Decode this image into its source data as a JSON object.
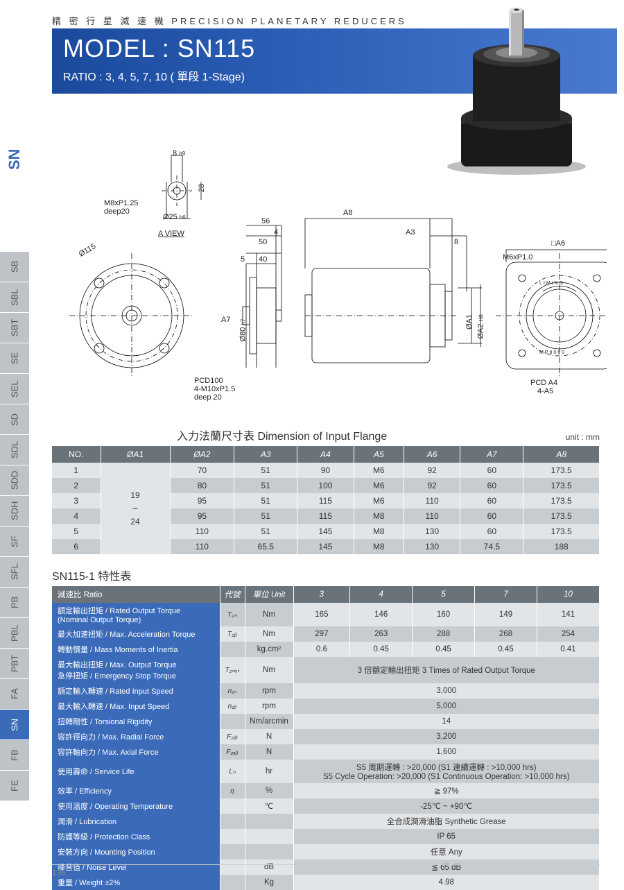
{
  "sideTabs": [
    "SB",
    "SBL",
    "SBT",
    "SE",
    "SEL",
    "SD",
    "SDL",
    "SDD",
    "SDH",
    "SF",
    "SFL",
    "PB",
    "PBL",
    "PBT",
    "FA",
    "SN",
    "FB",
    "FE"
  ],
  "sideActive": "SN",
  "sideMain": "SN",
  "header": {
    "topLabel": "精 密 行 星 減 速 機   PRECISION PLANETARY REDUCERS",
    "model": "MODEL : SN115",
    "ratio": "RATIO : 3,  4,  5,  7,  10 ( 單段 1-Stage)"
  },
  "drawing": {
    "shaftTop": "8",
    "shaftTopTol": "h9",
    "shaftHeight": "28",
    "m8": "M8xP1.25",
    "deep20a": "deep20",
    "d25": "Ø25",
    "d25Tol": "h6",
    "aview": "A  VIEW",
    "d115": "Ø115",
    "pcd100": "PCD100",
    "m10": "4-M10xP1.5",
    "deep20b": "deep 20",
    "a8": "A8",
    "n56": "56",
    "n4": "4",
    "n50": "50",
    "n5": "5",
    "n40": "40",
    "a7v": "A7",
    "d80": "Ø80",
    "d80Tol": "h7",
    "a3": "A3",
    "n8": "8",
    "da1": "ØA1",
    "da2": "ØA2",
    "da2Tol": "H8",
    "sqA6": "□A6",
    "m6": "M6xP1.0",
    "pcdA4": "PCD A4",
    "fourA5": "4-A5",
    "liming": "LIMING",
    "mp": "MP9060"
  },
  "flangeTable": {
    "title": "入力法蘭尺寸表  Dimension of Input Flange",
    "unit": "unit : mm",
    "headers": [
      "NO.",
      "ØA1",
      "ØA2",
      "A3",
      "A4",
      "A5",
      "A6",
      "A7",
      "A8"
    ],
    "oa1Top": "19",
    "oa1Mid": "~",
    "oa1Bot": "24",
    "rows": [
      [
        "1",
        "",
        "70",
        "51",
        "90",
        "M6",
        "92",
        "60",
        "173.5"
      ],
      [
        "2",
        "",
        "80",
        "51",
        "100",
        "M6",
        "92",
        "60",
        "173.5"
      ],
      [
        "3",
        "",
        "95",
        "51",
        "115",
        "M6",
        "110",
        "60",
        "173.5"
      ],
      [
        "4",
        "",
        "95",
        "51",
        "115",
        "M8",
        "110",
        "60",
        "173.5"
      ],
      [
        "5",
        "",
        "110",
        "51",
        "145",
        "M8",
        "130",
        "60",
        "173.5"
      ],
      [
        "6",
        "",
        "110",
        "65.5",
        "145",
        "M8",
        "130",
        "74.5",
        "188"
      ]
    ]
  },
  "specTable": {
    "title": "SN115-1 特性表",
    "headerRow": {
      "ratio": "減速比 Ratio",
      "code": "代號",
      "unit": "單位 Unit",
      "vals": [
        "3",
        "4",
        "5",
        "7",
        "10"
      ]
    },
    "rows": [
      {
        "label": "額定輸出扭矩 / Rated Output Torque\n(Nominal Output Torque)",
        "code": "T₂ₙ",
        "unit": "Nm",
        "vals": [
          "165",
          "146",
          "160",
          "149",
          "141"
        ]
      },
      {
        "label": "最大加速扭矩 / Max. Acceleration Torque",
        "code": "T₂ᵦ",
        "unit": "Nm",
        "vals": [
          "297",
          "263",
          "288",
          "268",
          "254"
        ]
      },
      {
        "label": "轉動慣量 / Mass Moments of Inertia",
        "code": "",
        "unit": "kg.cm²",
        "vals": [
          "0.6",
          "0.45",
          "0.45",
          "0.45",
          "0.41"
        ]
      },
      {
        "label": "最大輸出扭矩 / Max. Output Torque\n急停扭矩 / Emergency Stop Torque",
        "code": "T₂ₙₒₜ",
        "unit": "Nm",
        "merged": "3 倍額定輸出扭矩 3 Times of Rated Output Torque"
      },
      {
        "label": "額定輸入轉速 / Rated Input Speed",
        "code": "n₁ₙ",
        "unit": "rpm",
        "merged": "3,000"
      },
      {
        "label": "最大輸入轉速 / Max. Input Speed",
        "code": "n₁ᵦ",
        "unit": "rpm",
        "merged": "5,000"
      },
      {
        "label": "扭轉剛性 / Torsional Rigidity",
        "code": "",
        "unit": "Nm/arcmin",
        "merged": "14"
      },
      {
        "label": "容許徑向力 / Max. Radial Force",
        "code": "F₂ᵣᵦ",
        "unit": "N",
        "merged": "3,200"
      },
      {
        "label": "容許軸向力 / Max. Axial Force",
        "code": "F₂ₐᵦ",
        "unit": "N",
        "merged": "1,600"
      },
      {
        "label": "使用壽命 / Service Life",
        "code": "Lₕ",
        "unit": "hr",
        "merged": "S5 周期運轉 : >20,000 (S1 連續運轉 : >10,000 hrs)\nS5 Cycle Operation: >20,000 (S1 Continuous Operation: >10,000 hrs)"
      },
      {
        "label": "效率 / Efficiency",
        "code": "η",
        "unit": "%",
        "merged": "≧ 97%"
      },
      {
        "label": "使用溫度 / Operating Temperature",
        "code": "",
        "unit": "℃",
        "merged": "-25℃ ~ +90℃"
      },
      {
        "label": "潤滑 / Lubrication",
        "code": "",
        "unit": "",
        "merged": "全合成潤滑油脂 Synthetic Grease"
      },
      {
        "label": "防護等級 / Protection Class",
        "code": "",
        "unit": "",
        "merged": "IP 65"
      },
      {
        "label": "安裝方向 / Mounting Position",
        "code": "",
        "unit": "",
        "merged": "任意 Any"
      },
      {
        "label": "噪音值 / Noise Level",
        "code": "",
        "unit": "dB",
        "merged": "≦ 65 dB"
      },
      {
        "label": "重量 / Weight ±2%",
        "code": "",
        "unit": "Kg",
        "merged": "4.98"
      }
    ]
  },
  "pageNum": "136",
  "colors": {
    "bannerGradStart": "#1b4a9c",
    "bannerGradEnd": "#4a7ad0",
    "tabInactive": "#bfc3c7",
    "tabActive": "#3a6ab8",
    "tableHeader": "#6b737a",
    "rowOdd": "#e2e5e8",
    "rowEven": "#c7ccd1",
    "specLabel": "#3a6ab8"
  }
}
